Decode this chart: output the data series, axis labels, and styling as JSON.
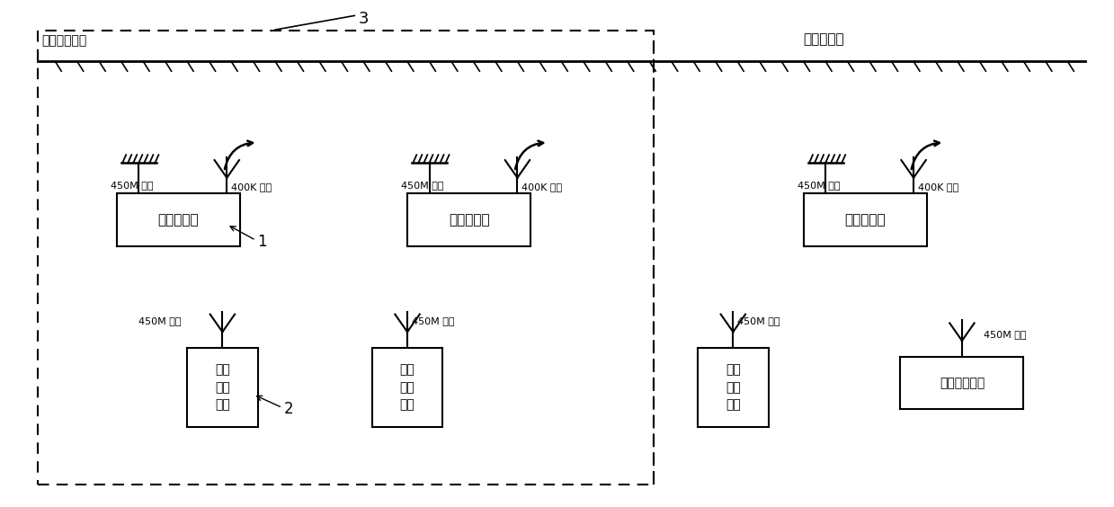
{
  "fig_width": 12.39,
  "fig_height": 5.64,
  "dpi": 100,
  "background_color": "#ffffff",
  "label_3": "3",
  "label_1": "1",
  "label_2": "2",
  "weak_field_label": "弱场隐道区间",
  "power_contact_label": "电力接触网",
  "relay_station_label": "区间转发台",
  "mobile_lines": [
    "移动",
    "通信",
    "终端"
  ],
  "fixed_terminal_label": "固定通信终端",
  "ant_450m": "450M 天线",
  "ant_400k": "400K 天线"
}
